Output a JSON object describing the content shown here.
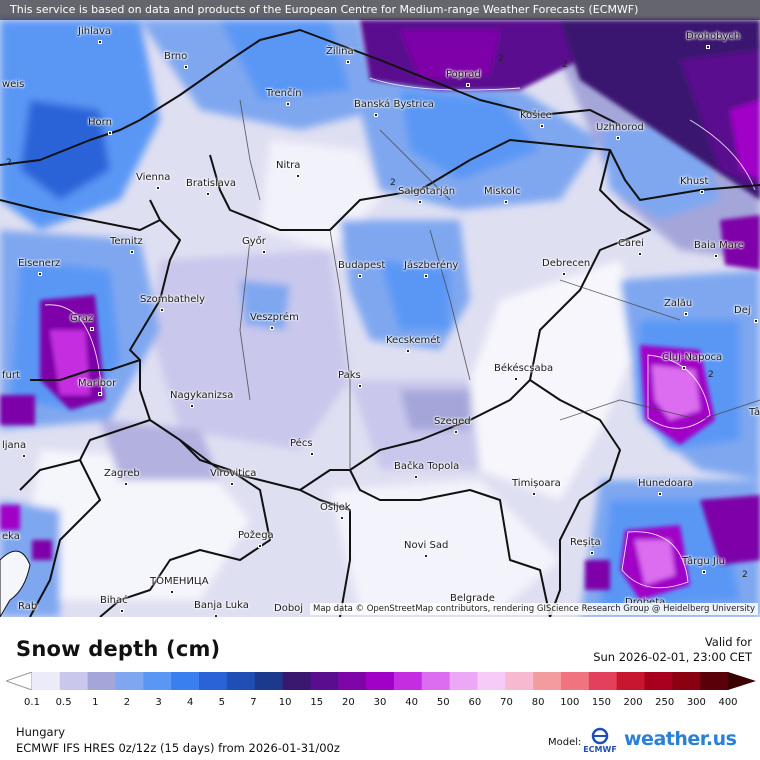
{
  "notice": "This service is based on data and products of the European Centre for Medium-range Weather Forecasts (ECMWF)",
  "credit": "Map data © OpenStreetMap contributors, rendering GIScience Research Group @ Heidelberg University",
  "cities": [
    {
      "name": "Jihlava"
    },
    {
      "name": "Brno"
    },
    {
      "name": "Žilina"
    },
    {
      "name": "Poprad"
    },
    {
      "name": "Drohobych"
    },
    {
      "name": "Horn"
    },
    {
      "name": "Trenčín"
    },
    {
      "name": "Banská Bystrica"
    },
    {
      "name": "Košice"
    },
    {
      "name": "Uzhhorod"
    },
    {
      "name": "Nitra"
    },
    {
      "name": "Vienna"
    },
    {
      "name": "Bratislava"
    },
    {
      "name": "Salgótarján"
    },
    {
      "name": "Miskolc"
    },
    {
      "name": "Khust"
    },
    {
      "name": "Ternitz"
    },
    {
      "name": "Győr"
    },
    {
      "name": "Carei"
    },
    {
      "name": "Baia Mare"
    },
    {
      "name": "Eisenerz"
    },
    {
      "name": "Budapest"
    },
    {
      "name": "Jászberény"
    },
    {
      "name": "Debrecen"
    },
    {
      "name": "Szombathely"
    },
    {
      "name": "Zalău"
    },
    {
      "name": "Graz"
    },
    {
      "name": "Veszprém"
    },
    {
      "name": "Dej"
    },
    {
      "name": "Kecskemét"
    },
    {
      "name": "Cluj-Napoca"
    },
    {
      "name": "Maribor"
    },
    {
      "name": "Paks"
    },
    {
      "name": "Békéscsaba"
    },
    {
      "name": "Nagykanizsa"
    },
    {
      "name": "Szeged"
    },
    {
      "name": "ljana"
    },
    {
      "name": "Pécs"
    },
    {
      "name": "Zagreb"
    },
    {
      "name": "Virovitica"
    },
    {
      "name": "Bačka Topola"
    },
    {
      "name": "Timișoara"
    },
    {
      "name": "Hunedoara"
    },
    {
      "name": "Osijek"
    },
    {
      "name": "Požega"
    },
    {
      "name": "Reșița"
    },
    {
      "name": "Novi Sad"
    },
    {
      "name": "Târgu Jiu"
    },
    {
      "name": "ТОМЕНИЦА"
    },
    {
      "name": "Bihać"
    },
    {
      "name": "Banja Luka"
    },
    {
      "name": "Doboj"
    },
    {
      "name": "Belgrade"
    },
    {
      "name": "Drobeta"
    },
    {
      "name": "weis"
    },
    {
      "name": "furt"
    },
    {
      "name": "eka"
    },
    {
      "name": "Rab"
    },
    {
      "name": "Tâ"
    }
  ],
  "contour_labels": [
    "2",
    "2",
    "2",
    "2",
    "2",
    "2"
  ],
  "legend": {
    "title": "Snow depth (cm)",
    "valid_label": "Valid for",
    "valid_time": "Sun 2026-02-01, 23:00 CET",
    "ticks": [
      "0.1",
      "0.5",
      "1",
      "2",
      "3",
      "4",
      "5",
      "7",
      "10",
      "15",
      "20",
      "30",
      "40",
      "50",
      "60",
      "70",
      "80",
      "100",
      "150",
      "200",
      "250",
      "300",
      "400"
    ],
    "colors": [
      "#ecebfa",
      "#c9c8ec",
      "#a4a6d9",
      "#7fa7f0",
      "#5a97f5",
      "#3a7fef",
      "#2a63d8",
      "#1f4fb5",
      "#1b3a8e",
      "#3a1870",
      "#5a0d8e",
      "#7e06a8",
      "#a100c7",
      "#c52de0",
      "#dc6cf0",
      "#eca7f6",
      "#f6cbf7",
      "#f6b9cf",
      "#f39ca0",
      "#f07480",
      "#e3405c",
      "#c81530",
      "#a8001c",
      "#8a0012",
      "#5a0008"
    ],
    "region": "Hungary",
    "model_text": "ECMWF IFS HRES 0z/12z (15 days) from 2026-01-31/00z",
    "model_label": "Model:",
    "ecmwf_logo_text": "ECMWF",
    "brand": "weather.us"
  }
}
